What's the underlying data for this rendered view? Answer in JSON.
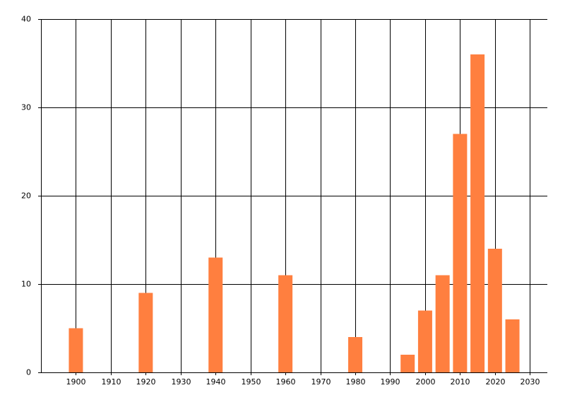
{
  "chart_data": {
    "type": "bar",
    "x": [
      1900,
      1920,
      1940,
      1960,
      1980,
      1995,
      2000,
      2005,
      2010,
      2015,
      2020,
      2025
    ],
    "values": [
      5,
      9,
      13,
      11,
      4,
      2,
      7,
      11,
      27,
      36,
      14,
      6
    ],
    "color": "#ff7f3f",
    "xlim": [
      1890,
      2035
    ],
    "xticks": [
      1900,
      1910,
      1920,
      1930,
      1940,
      1950,
      1960,
      1970,
      1980,
      1990,
      2000,
      2010,
      2020,
      2030
    ],
    "ylim": [
      0,
      40
    ],
    "yticks": [
      0,
      10,
      20,
      30,
      40
    ],
    "grid": true
  }
}
